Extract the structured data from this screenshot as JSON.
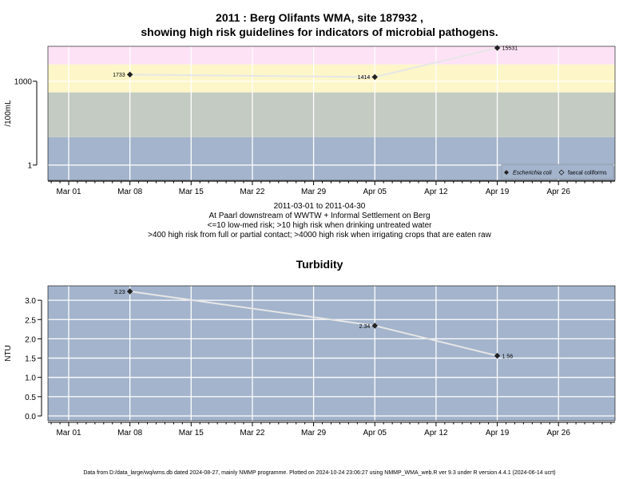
{
  "chart_data": [
    {
      "type": "line",
      "title_line1": "2011 : Berg Olifants WMA, site 187932 ,",
      "title_line2": "showing high risk guidelines for indicators of microbial pathogens.",
      "ylabel": "/100mL",
      "yscale": "log",
      "y_ticks": [
        {
          "value": 1,
          "label": "1"
        },
        {
          "value": 1000,
          "label": "1000"
        }
      ],
      "x_ticks": [
        "Mar 01",
        "Mar 08",
        "Mar 15",
        "Mar 22",
        "Mar 29",
        "Apr 05",
        "Apr 12",
        "Apr 19",
        "Apr 26"
      ],
      "bands": [
        {
          "from": 0.1,
          "to": 10,
          "color": "#a3b4cc"
        },
        {
          "from": 10,
          "to": 400,
          "color": "#c4cbc2"
        },
        {
          "from": 400,
          "to": 4000,
          "color": "#fdf6c9"
        },
        {
          "from": 4000,
          "to": 15000,
          "color": "#fde2f6"
        }
      ],
      "series": [
        {
          "name": "Escherichia coli",
          "marker": "filled-diamond",
          "points": [
            {
              "x": "2011-03-08",
              "y": 1733,
              "label": "1733"
            },
            {
              "x": "2011-04-05",
              "y": 1414,
              "label": "1414"
            },
            {
              "x": "2011-04-19",
              "y": 15531,
              "label": "15531"
            }
          ]
        },
        {
          "name": "faecal coliforms",
          "marker": "open-diamond",
          "points": []
        }
      ],
      "legend": [
        "Escherichia coli",
        "faecal coliforms"
      ],
      "legend_position": "bottom-right",
      "line_color": "#e6e6e6"
    },
    {
      "type": "line",
      "title": "Turbidity",
      "ylabel": "NTU",
      "ylim": [
        0,
        3.3
      ],
      "y_ticks": [
        "0.0",
        "0.5",
        "1.0",
        "1.5",
        "2.0",
        "2.5",
        "3.0"
      ],
      "x_ticks": [
        "Mar 01",
        "Mar 08",
        "Mar 15",
        "Mar 22",
        "Mar 29",
        "Apr 05",
        "Apr 12",
        "Apr 19",
        "Apr 26"
      ],
      "background": "#a3b4cc",
      "series": [
        {
          "points": [
            {
              "x": "2011-03-08",
              "y": 3.23,
              "label": "3.23"
            },
            {
              "x": "2011-04-05",
              "y": 2.34,
              "label": "2.34"
            },
            {
              "x": "2011-04-19",
              "y": 1.56,
              "label": "1.56"
            }
          ]
        }
      ]
    }
  ],
  "subtitle_lines": [
    "2011-03-01 to 2011-04-30",
    "At Paarl downstream of WWTW + Informal Settlement on Berg",
    "<=10 low-med risk; >10 high risk when drinking untreated water",
    ">400 high risk from full or partial contact; >4000 high risk when irrigating crops that are eaten raw"
  ],
  "footer": "Data from D:/data_large/wq/wms.db dated 2024-08-27, mainly NMMP programme. Plotted on 2024-10-24 23:06:27 using NMMP_WMA_web.R ver 9.3 under R version 4.4.1 (2024-06-14 ucrt)"
}
